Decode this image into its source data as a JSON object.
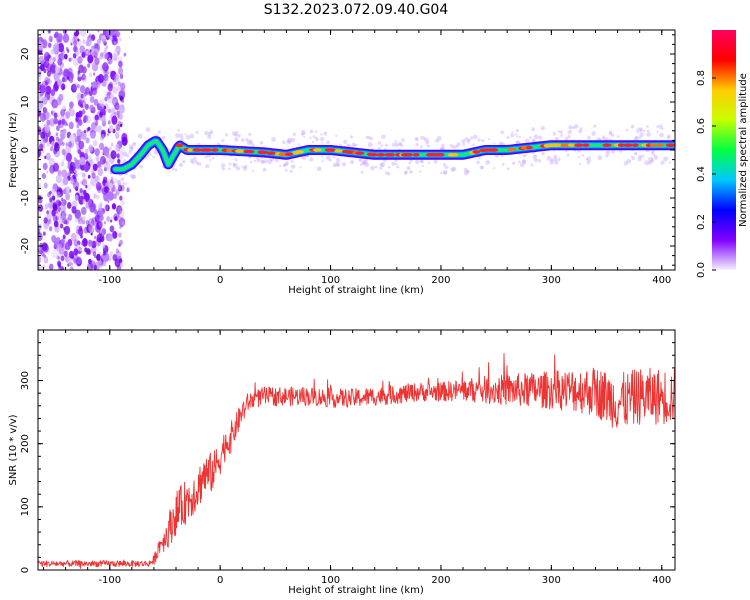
{
  "title": "S132.2023.072.09.40.G04",
  "chart_data": [
    {
      "type": "heatmap",
      "xlabel": "Height of straight line (km)",
      "ylabel": "Frequency (Hz)",
      "xlim": [
        -165,
        412
      ],
      "ylim": [
        -25,
        25
      ],
      "x_ticks": [
        "-100",
        "0",
        "100",
        "200",
        "300",
        "400"
      ],
      "x_tick_values": [
        -100,
        0,
        100,
        200,
        300,
        400
      ],
      "y_ticks": [
        "-20",
        "-10",
        "0",
        "10",
        "20"
      ],
      "y_tick_values": [
        -20,
        -10,
        0,
        10,
        20
      ],
      "noise_region": [
        -165,
        -88
      ],
      "centerline": [
        [
          -95,
          -4
        ],
        [
          -88,
          -4
        ],
        [
          -80,
          -3
        ],
        [
          -72,
          -1
        ],
        [
          -65,
          1
        ],
        [
          -58,
          2
        ],
        [
          -52,
          0
        ],
        [
          -47,
          -3
        ],
        [
          -42,
          -1
        ],
        [
          -37,
          1
        ],
        [
          -30,
          0
        ],
        [
          -20,
          0
        ],
        [
          0,
          0
        ],
        [
          40,
          -0.5
        ],
        [
          60,
          -1
        ],
        [
          80,
          0
        ],
        [
          100,
          0
        ],
        [
          120,
          -0.5
        ],
        [
          140,
          -1
        ],
        [
          160,
          -1
        ],
        [
          180,
          -1
        ],
        [
          200,
          -1
        ],
        [
          220,
          -1
        ],
        [
          240,
          0
        ],
        [
          260,
          0
        ],
        [
          280,
          0.5
        ],
        [
          300,
          1
        ],
        [
          320,
          1
        ],
        [
          340,
          1
        ],
        [
          360,
          1
        ],
        [
          380,
          1
        ],
        [
          400,
          1
        ],
        [
          412,
          1
        ]
      ],
      "colorbar": {
        "label": "Normalized spectral amplitude",
        "range": [
          0,
          1
        ],
        "ticks": [
          "0.0",
          "0.2",
          "0.4",
          "0.6",
          "0.8"
        ],
        "tick_values": [
          0,
          0.2,
          0.4,
          0.6,
          0.8
        ],
        "colors": [
          "#f5f0ff",
          "#8000ff",
          "#0000ff",
          "#00c8ff",
          "#00ff40",
          "#c8ff00",
          "#ffcc00",
          "#ff0000",
          "#ff0060"
        ]
      }
    },
    {
      "type": "line",
      "xlabel": "Height of straight line (km)",
      "ylabel": "SNR (10 * v/v)",
      "xlim": [
        -165,
        412
      ],
      "ylim": [
        0,
        380
      ],
      "x_ticks": [
        "-100",
        "0",
        "100",
        "200",
        "300",
        "400"
      ],
      "x_tick_values": [
        -100,
        0,
        100,
        200,
        300,
        400
      ],
      "y_ticks": [
        "0",
        "100",
        "200",
        "300"
      ],
      "y_tick_values": [
        0,
        100,
        200,
        300
      ],
      "series": [
        {
          "color": "#ee3333",
          "x": [
            -165,
            -140,
            -120,
            -100,
            -80,
            -65,
            -60,
            -55,
            -50,
            -45,
            -40,
            -35,
            -30,
            -25,
            -20,
            -15,
            -10,
            -5,
            0,
            5,
            10,
            15,
            20,
            25,
            30,
            40,
            60,
            80,
            100,
            120,
            140,
            160,
            180,
            200,
            220,
            240,
            260,
            280,
            300,
            320,
            340,
            360,
            380,
            400,
            412
          ],
          "y": [
            10,
            10,
            10,
            10,
            10,
            10,
            15,
            40,
            50,
            70,
            90,
            100,
            110,
            120,
            130,
            150,
            150,
            160,
            180,
            200,
            210,
            230,
            250,
            265,
            270,
            275,
            275,
            275,
            272,
            272,
            275,
            278,
            282,
            282,
            285,
            285,
            285,
            285,
            285,
            285,
            283,
            265,
            275,
            275,
            275
          ],
          "noise": [
            5,
            5,
            5,
            5,
            5,
            5,
            8,
            15,
            20,
            30,
            35,
            35,
            35,
            35,
            35,
            35,
            35,
            30,
            30,
            25,
            25,
            20,
            20,
            15,
            15,
            15,
            15,
            15,
            15,
            15,
            15,
            15,
            15,
            15,
            18,
            22,
            25,
            28,
            30,
            35,
            40,
            45,
            45,
            45,
            45
          ]
        }
      ]
    }
  ]
}
